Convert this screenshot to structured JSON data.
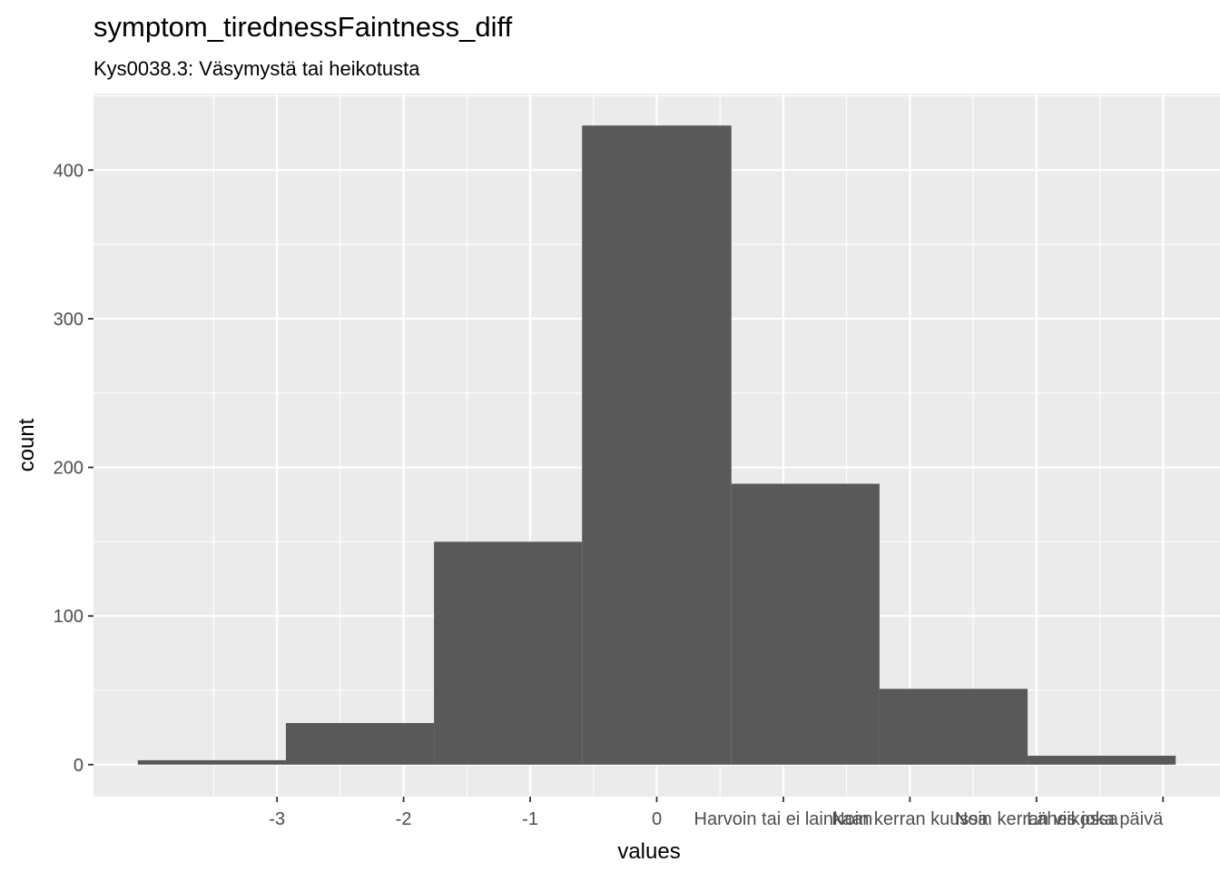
{
  "chart_data": {
    "type": "bar",
    "title": "symptom_tirednessFaintness_diff",
    "subtitle": "Kys0038.3: Väsymystä tai heikotusta",
    "xlabel": "values",
    "ylabel": "count",
    "bins": [
      {
        "x0": -4.1,
        "x1": -2.93,
        "count": 3
      },
      {
        "x0": -2.93,
        "x1": -1.76,
        "count": 28
      },
      {
        "x0": -1.76,
        "x1": -0.59,
        "count": 150
      },
      {
        "x0": -0.59,
        "x1": 0.59,
        "count": 430
      },
      {
        "x0": 0.59,
        "x1": 1.76,
        "count": 189
      },
      {
        "x0": 1.76,
        "x1": 2.93,
        "count": 51
      },
      {
        "x0": 2.93,
        "x1": 4.1,
        "count": 6
      }
    ],
    "x_ticks": [
      {
        "value": -3,
        "label": "-3"
      },
      {
        "value": -2,
        "label": "-2"
      },
      {
        "value": -1,
        "label": "-1"
      },
      {
        "value": 0,
        "label": "0"
      },
      {
        "value": 1,
        "label": "Harvoin tai ei lainkaan"
      },
      {
        "value": 2,
        "label": "Noin kerran kuussa"
      },
      {
        "value": 3,
        "label": "Noin kerran viikossa"
      },
      {
        "value": 4,
        "label": "Lähes joka päivä"
      }
    ],
    "y_ticks": [
      0,
      100,
      200,
      300,
      400
    ],
    "xlim": [
      -4.45,
      4.45
    ],
    "ylim": [
      -21.5,
      451.5
    ],
    "grid": true,
    "bar_color": "#595959",
    "panel_color": "#ebebeb",
    "grid_color": "#ffffff"
  }
}
